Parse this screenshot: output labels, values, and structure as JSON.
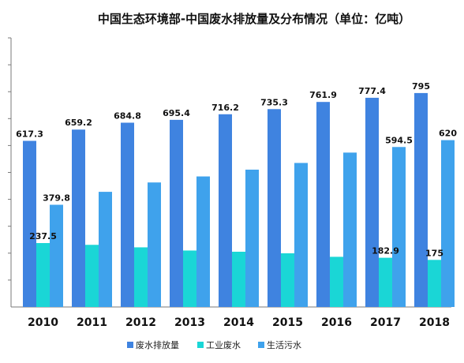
{
  "chart_data": {
    "type": "bar",
    "title": "中国生态环境部-中国废水排放量及分布情况（单位：亿吨）",
    "categories": [
      "2010",
      "2011",
      "2012",
      "2013",
      "2014",
      "2015",
      "2016",
      "2017",
      "2018"
    ],
    "series": [
      {
        "name": "废水排放量",
        "color": "#3f83e0",
        "values": [
          617.3,
          659.2,
          684.8,
          695.4,
          716.2,
          735.3,
          761.9,
          777.4,
          795
        ]
      },
      {
        "name": "工业废水",
        "color": "#1ad6d6",
        "values": [
          237.5,
          230.9,
          221.6,
          209.8,
          205.3,
          199.5,
          186.4,
          182.9,
          175
        ]
      },
      {
        "name": "生活污水",
        "color": "#3fa2ec",
        "values": [
          379.8,
          427.9,
          462.7,
          485.1,
          510.3,
          535.2,
          573.7,
          594.5,
          620
        ]
      }
    ],
    "data_labels": [
      {
        "series": 0,
        "values": [
          "617.3",
          "659.2",
          "684.8",
          "695.4",
          "716.2",
          "735.3",
          "761.9",
          "777.4",
          "795"
        ]
      },
      {
        "series": 1,
        "values": [
          "237.5",
          "",
          "",
          "",
          "",
          "",
          "",
          "182.9",
          "175"
        ]
      },
      {
        "series": 2,
        "values": [
          "379.8",
          "",
          "",
          "",
          "",
          "",
          "",
          "594.5",
          "620"
        ]
      }
    ],
    "ylim": [
      0,
      1000
    ],
    "grid": false,
    "legend": "bottom",
    "xlabel": "",
    "ylabel": ""
  }
}
